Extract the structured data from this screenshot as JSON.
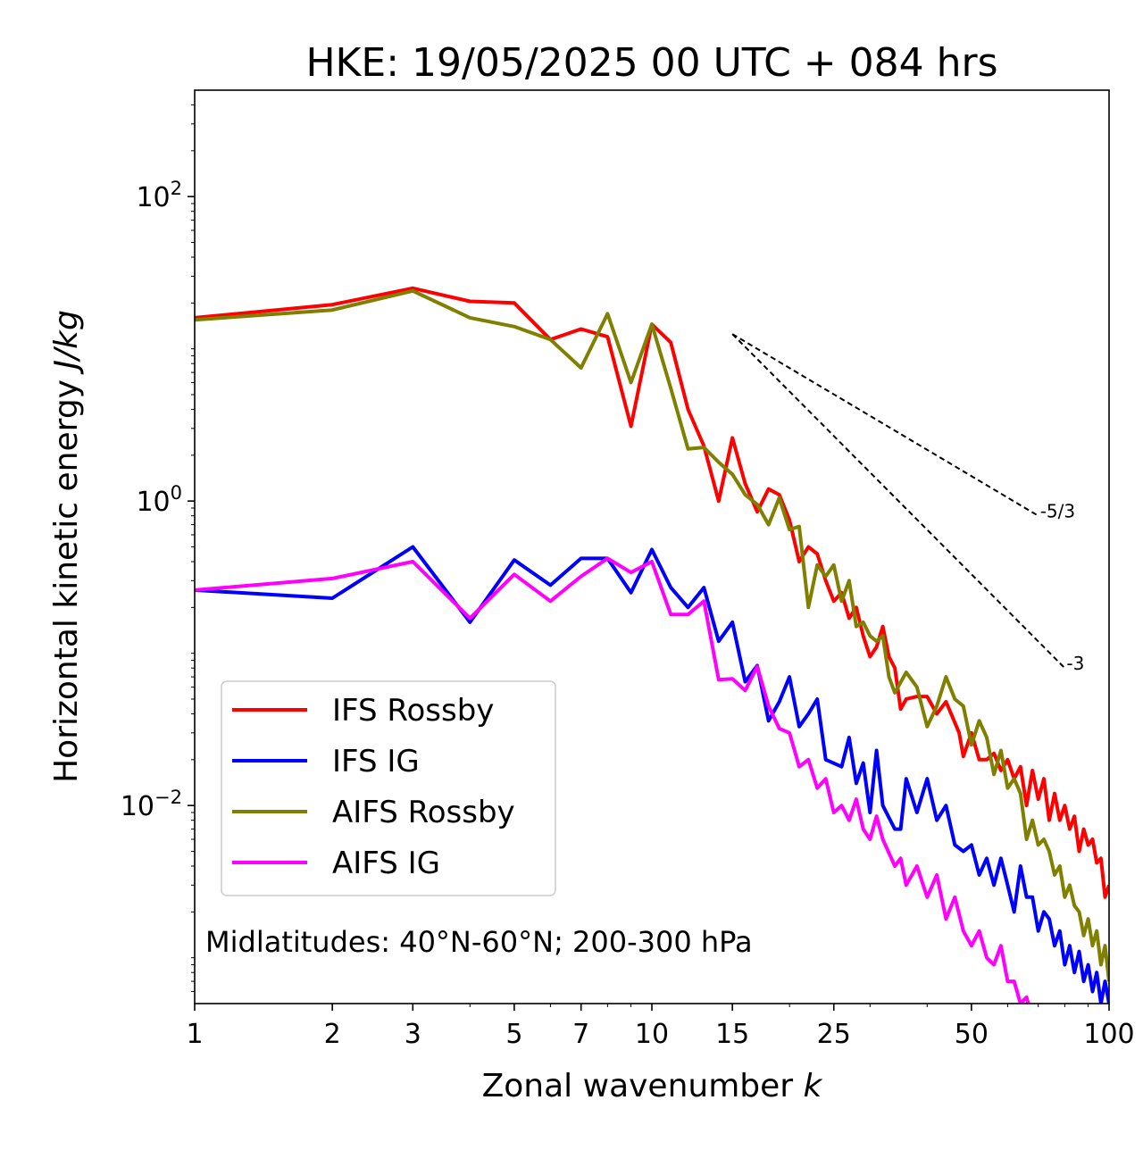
{
  "chart_data": {
    "type": "line",
    "title": "HKE: 19/05/2025 00 UTC + 084 hrs",
    "xlabel": "Zonal wavenumber",
    "xlabel_var": "k",
    "ylabel": "Horizontal kinetic energy",
    "ylabel_unit": "J/kg",
    "xscale": "log",
    "yscale": "log",
    "xlim": [
      1,
      100
    ],
    "ylim": [
      0.0005,
      500
    ],
    "x_ticks": [
      1,
      2,
      3,
      5,
      7,
      10,
      15,
      25,
      50,
      100
    ],
    "x_tick_labels": [
      "1",
      "2",
      "3",
      "5",
      "7",
      "10",
      "15",
      "25",
      "50",
      "100"
    ],
    "y_ticks": [
      {
        "value": 100,
        "base": "10",
        "exp": "2"
      },
      {
        "value": 1,
        "base": "10",
        "exp": "0"
      },
      {
        "value": 0.01,
        "base": "10",
        "exp": "−2"
      }
    ],
    "grid": false,
    "legend_position": "lower-left",
    "annotation": "Midlatitudes: 40°N-60°N; 200-300 hPa",
    "reference_lines": [
      {
        "label": "-5/3",
        "x": [
          15,
          70
        ],
        "y": [
          12.5,
          0.8
        ]
      },
      {
        "label": "-3",
        "x": [
          15,
          80
        ],
        "y": [
          12.5,
          0.08
        ]
      }
    ],
    "series": [
      {
        "name": "IFS Rossby",
        "color": "#ff0000",
        "points": [
          [
            1,
            16
          ],
          [
            2,
            19.5
          ],
          [
            3,
            25
          ],
          [
            4,
            20.5
          ],
          [
            5,
            20
          ],
          [
            6,
            11.5
          ],
          [
            7,
            13.5
          ],
          [
            8,
            12
          ],
          [
            9,
            3.1
          ],
          [
            10,
            14.5
          ],
          [
            11,
            11
          ],
          [
            12,
            4
          ],
          [
            13,
            2.3
          ],
          [
            14,
            1
          ],
          [
            15,
            2.6
          ],
          [
            16,
            1.3
          ],
          [
            17,
            0.85
          ],
          [
            18,
            1.2
          ],
          [
            19,
            1.1
          ],
          [
            20,
            0.75
          ],
          [
            21,
            0.4
          ],
          [
            22,
            0.5
          ],
          [
            23,
            0.45
          ],
          [
            24,
            0.3
          ],
          [
            25,
            0.22
          ],
          [
            26,
            0.25
          ],
          [
            27,
            0.17
          ],
          [
            28,
            0.2
          ],
          [
            29,
            0.13
          ],
          [
            30,
            0.095
          ],
          [
            31,
            0.11
          ],
          [
            32,
            0.15
          ],
          [
            33,
            0.095
          ],
          [
            34,
            0.08
          ],
          [
            35,
            0.043
          ],
          [
            36,
            0.05
          ],
          [
            38,
            0.052
          ],
          [
            40,
            0.052
          ],
          [
            42,
            0.04
          ],
          [
            44,
            0.048
          ],
          [
            45,
            0.041
          ],
          [
            47,
            0.03
          ],
          [
            48,
            0.021
          ],
          [
            50,
            0.03
          ],
          [
            52,
            0.02
          ],
          [
            54,
            0.02
          ],
          [
            56,
            0.022
          ],
          [
            58,
            0.017
          ],
          [
            60,
            0.02
          ],
          [
            62,
            0.015
          ],
          [
            64,
            0.018
          ],
          [
            66,
            0.01
          ],
          [
            68,
            0.017
          ],
          [
            70,
            0.011
          ],
          [
            72,
            0.015
          ],
          [
            74,
            0.008
          ],
          [
            76,
            0.012
          ],
          [
            78,
            0.008
          ],
          [
            80,
            0.01
          ],
          [
            82,
            0.007
          ],
          [
            84,
            0.0085
          ],
          [
            86,
            0.005
          ],
          [
            88,
            0.007
          ],
          [
            90,
            0.0055
          ],
          [
            92,
            0.006
          ],
          [
            94,
            0.0042
          ],
          [
            96,
            0.0045
          ],
          [
            98,
            0.0025
          ],
          [
            100,
            0.003
          ]
        ]
      },
      {
        "name": "IFS IG",
        "color": "#0000ff",
        "points": [
          [
            1,
            0.26
          ],
          [
            2,
            0.23
          ],
          [
            3,
            0.5
          ],
          [
            4,
            0.16
          ],
          [
            5,
            0.41
          ],
          [
            6,
            0.28
          ],
          [
            7,
            0.42
          ],
          [
            8,
            0.42
          ],
          [
            9,
            0.25
          ],
          [
            10,
            0.48
          ],
          [
            11,
            0.27
          ],
          [
            12,
            0.2
          ],
          [
            13,
            0.27
          ],
          [
            14,
            0.12
          ],
          [
            15,
            0.16
          ],
          [
            16,
            0.065
          ],
          [
            17,
            0.083
          ],
          [
            18,
            0.036
          ],
          [
            19,
            0.048
          ],
          [
            20,
            0.07
          ],
          [
            21,
            0.033
          ],
          [
            22,
            0.04
          ],
          [
            23,
            0.05
          ],
          [
            24,
            0.02
          ],
          [
            26,
            0.018
          ],
          [
            27,
            0.028
          ],
          [
            28,
            0.014
          ],
          [
            29,
            0.019
          ],
          [
            30,
            0.009
          ],
          [
            31,
            0.023
          ],
          [
            32,
            0.01
          ],
          [
            34,
            0.007
          ],
          [
            35,
            0.007
          ],
          [
            36,
            0.015
          ],
          [
            38,
            0.009
          ],
          [
            40,
            0.015
          ],
          [
            42,
            0.008
          ],
          [
            44,
            0.01
          ],
          [
            46,
            0.0055
          ],
          [
            48,
            0.005
          ],
          [
            50,
            0.0055
          ],
          [
            52,
            0.0035
          ],
          [
            54,
            0.0045
          ],
          [
            56,
            0.003
          ],
          [
            58,
            0.0045
          ],
          [
            60,
            0.003
          ],
          [
            62,
            0.002
          ],
          [
            64,
            0.004
          ],
          [
            66,
            0.0025
          ],
          [
            68,
            0.0025
          ],
          [
            70,
            0.0015
          ],
          [
            72,
            0.002
          ],
          [
            74,
            0.0018
          ],
          [
            76,
            0.0012
          ],
          [
            78,
            0.0015
          ],
          [
            80,
            0.0009
          ],
          [
            82,
            0.0012
          ],
          [
            84,
            0.0008
          ],
          [
            86,
            0.0011
          ],
          [
            88,
            0.0007
          ],
          [
            90,
            0.0009
          ],
          [
            92,
            0.0006
          ],
          [
            94,
            0.0008
          ],
          [
            96,
            0.0005
          ],
          [
            98,
            0.0007
          ],
          [
            100,
            0.0005
          ]
        ]
      },
      {
        "name": "AIFS Rossby",
        "color": "#808000",
        "points": [
          [
            1,
            15.5
          ],
          [
            2,
            18
          ],
          [
            3,
            24
          ],
          [
            4,
            16
          ],
          [
            5,
            14
          ],
          [
            6,
            11.5
          ],
          [
            7,
            7.5
          ],
          [
            8,
            17
          ],
          [
            9,
            6
          ],
          [
            10,
            14.5
          ],
          [
            11,
            5.5
          ],
          [
            12,
            2.2
          ],
          [
            13,
            2.25
          ],
          [
            14,
            1.8
          ],
          [
            15,
            1.5
          ],
          [
            16,
            1.1
          ],
          [
            17,
            0.95
          ],
          [
            18,
            0.7
          ],
          [
            19,
            1.05
          ],
          [
            20,
            0.65
          ],
          [
            21,
            0.68
          ],
          [
            22,
            0.2
          ],
          [
            23,
            0.38
          ],
          [
            24,
            0.32
          ],
          [
            25,
            0.38
          ],
          [
            26,
            0.22
          ],
          [
            27,
            0.3
          ],
          [
            28,
            0.15
          ],
          [
            29,
            0.16
          ],
          [
            30,
            0.13
          ],
          [
            31,
            0.12
          ],
          [
            32,
            0.13
          ],
          [
            33,
            0.07
          ],
          [
            34,
            0.055
          ],
          [
            36,
            0.075
          ],
          [
            38,
            0.06
          ],
          [
            40,
            0.033
          ],
          [
            42,
            0.045
          ],
          [
            44,
            0.07
          ],
          [
            46,
            0.05
          ],
          [
            48,
            0.045
          ],
          [
            50,
            0.025
          ],
          [
            52,
            0.036
          ],
          [
            54,
            0.028
          ],
          [
            56,
            0.016
          ],
          [
            58,
            0.023
          ],
          [
            60,
            0.013
          ],
          [
            62,
            0.015
          ],
          [
            64,
            0.012
          ],
          [
            66,
            0.006
          ],
          [
            68,
            0.008
          ],
          [
            70,
            0.0055
          ],
          [
            72,
            0.006
          ],
          [
            74,
            0.005
          ],
          [
            76,
            0.0035
          ],
          [
            78,
            0.004
          ],
          [
            80,
            0.0025
          ],
          [
            82,
            0.003
          ],
          [
            84,
            0.0022
          ],
          [
            86,
            0.002
          ],
          [
            88,
            0.0014
          ],
          [
            90,
            0.0018
          ],
          [
            92,
            0.0012
          ],
          [
            94,
            0.0015
          ],
          [
            96,
            0.0009
          ],
          [
            98,
            0.0012
          ],
          [
            100,
            0.0007
          ]
        ]
      },
      {
        "name": "AIFS IG",
        "color": "#ff00ff",
        "points": [
          [
            1,
            0.26
          ],
          [
            2,
            0.31
          ],
          [
            3,
            0.4
          ],
          [
            4,
            0.17
          ],
          [
            5,
            0.33
          ],
          [
            6,
            0.22
          ],
          [
            7,
            0.32
          ],
          [
            8,
            0.42
          ],
          [
            9,
            0.34
          ],
          [
            10,
            0.4
          ],
          [
            11,
            0.18
          ],
          [
            12,
            0.18
          ],
          [
            13,
            0.22
          ],
          [
            14,
            0.067
          ],
          [
            15,
            0.068
          ],
          [
            16,
            0.057
          ],
          [
            17,
            0.082
          ],
          [
            18,
            0.045
          ],
          [
            19,
            0.032
          ],
          [
            20,
            0.03
          ],
          [
            21,
            0.018
          ],
          [
            22,
            0.02
          ],
          [
            23,
            0.013
          ],
          [
            24,
            0.015
          ],
          [
            25,
            0.009
          ],
          [
            26,
            0.01
          ],
          [
            27,
            0.008
          ],
          [
            28,
            0.011
          ],
          [
            29,
            0.007
          ],
          [
            30,
            0.006
          ],
          [
            31,
            0.0085
          ],
          [
            32,
            0.006
          ],
          [
            34,
            0.004
          ],
          [
            35,
            0.0045
          ],
          [
            36,
            0.003
          ],
          [
            38,
            0.004
          ],
          [
            40,
            0.0025
          ],
          [
            42,
            0.0035
          ],
          [
            44,
            0.0018
          ],
          [
            46,
            0.0025
          ],
          [
            48,
            0.0015
          ],
          [
            50,
            0.0012
          ],
          [
            52,
            0.0015
          ],
          [
            54,
            0.001
          ],
          [
            56,
            0.0009
          ],
          [
            58,
            0.0012
          ],
          [
            60,
            0.0007
          ],
          [
            62,
            0.0007
          ],
          [
            64,
            0.0005
          ],
          [
            66,
            0.00055
          ],
          [
            68,
            0.0004
          ]
        ]
      }
    ]
  }
}
